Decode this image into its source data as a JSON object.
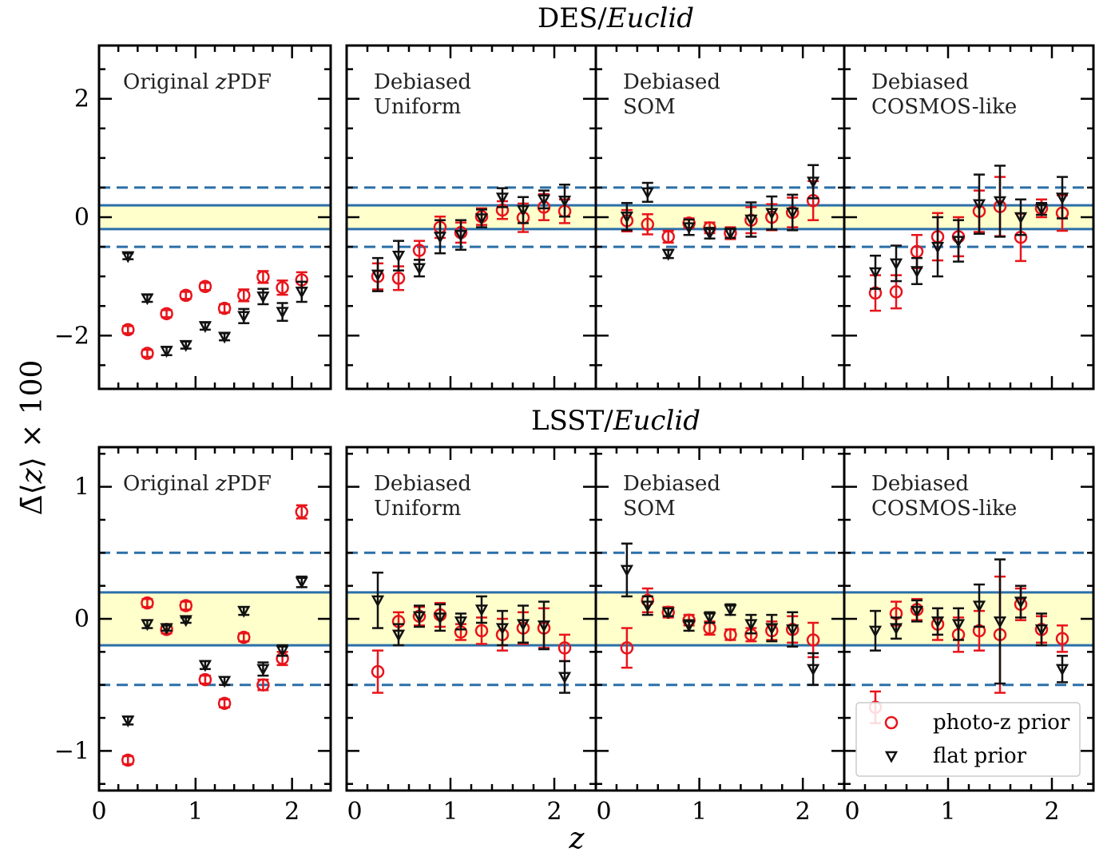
{
  "figure": {
    "ylabel": "Δ̄⟨z⟩ × 100",
    "xlabel": "z"
  },
  "legend": [
    {
      "label": "photo-z prior",
      "marker": "circle",
      "color": "#e8141b"
    },
    {
      "label": "flat prior",
      "marker": "triangle",
      "color": "#111111"
    }
  ],
  "colors": {
    "photoz": "#e8141b",
    "flat": "#111111",
    "band_fill": "#ffffcc",
    "ref_line": "#2b6fa8"
  },
  "chart_data": [
    {
      "type": "scatter",
      "row": "DES/Euclid",
      "panels": [
        {
          "label_lines": [
            "Original zPDF"
          ],
          "xlim": [
            0,
            2.4
          ],
          "ylim": [
            -2.9,
            2.9
          ],
          "xticks": [
            "0",
            "1",
            "2"
          ],
          "yticks": [
            -2,
            0,
            2
          ],
          "x": [
            0.3,
            0.5,
            0.7,
            0.9,
            1.1,
            1.3,
            1.5,
            1.7,
            1.9,
            2.1
          ],
          "series": [
            {
              "name": "photo-z prior",
              "x": [
                0.3,
                0.5,
                0.7,
                0.9,
                1.1,
                1.3,
                1.5,
                1.7,
                1.9,
                2.1
              ],
              "y": [
                -1.9,
                -2.3,
                -1.63,
                -1.32,
                -1.17,
                -1.54,
                -1.32,
                -1.01,
                -1.19,
                -1.06
              ],
              "err": [
                0.06,
                0.06,
                0.06,
                0.06,
                0.06,
                0.07,
                0.1,
                0.1,
                0.12,
                0.13
              ]
            },
            {
              "name": "flat prior",
              "x": [
                0.3,
                0.5,
                0.7,
                0.9,
                1.1,
                1.3,
                1.5,
                1.7,
                1.9,
                2.1
              ],
              "y": [
                -0.66,
                -1.37,
                -2.26,
                -2.16,
                -1.84,
                -2.02,
                -1.67,
                -1.34,
                -1.6,
                -1.26
              ],
              "err": [
                0.05,
                0.06,
                0.07,
                0.06,
                0.06,
                0.06,
                0.12,
                0.13,
                0.15,
                0.17
              ]
            }
          ]
        },
        {
          "label_lines": [
            "Debiased",
            "Uniform"
          ],
          "xlim": [
            0,
            2.4
          ],
          "ylim": [
            -2.9,
            2.9
          ],
          "xticks": [
            "0",
            "1",
            "2"
          ],
          "yticks": [
            -2,
            0,
            2
          ],
          "series": [
            {
              "name": "photo-z prior",
              "x": [
                0.3,
                0.5,
                0.7,
                0.9,
                1.1,
                1.3,
                1.5,
                1.7,
                1.9,
                2.1
              ],
              "y": [
                -1.0,
                -1.03,
                -0.56,
                -0.17,
                -0.26,
                0.01,
                0.12,
                -0.01,
                0.17,
                0.1
              ],
              "err": [
                0.22,
                0.2,
                0.16,
                0.18,
                0.17,
                0.14,
                0.15,
                0.24,
                0.22,
                0.2
              ]
            },
            {
              "name": "flat prior",
              "x": [
                0.3,
                0.5,
                0.7,
                0.9,
                1.1,
                1.3,
                1.5,
                1.7,
                1.9,
                2.1
              ],
              "y": [
                -0.97,
                -0.65,
                -0.86,
                -0.33,
                -0.3,
                -0.02,
                0.33,
                0.12,
                0.3,
                0.28
              ],
              "err": [
                0.28,
                0.25,
                0.14,
                0.28,
                0.25,
                0.15,
                0.16,
                0.22,
                0.15,
                0.27
              ]
            }
          ]
        },
        {
          "label_lines": [
            "Debiased",
            "SOM"
          ],
          "xlim": [
            0,
            2.4
          ],
          "ylim": [
            -2.9,
            2.9
          ],
          "xticks": [
            "0",
            "1",
            "2"
          ],
          "yticks": [
            -2,
            0,
            2
          ],
          "series": [
            {
              "name": "photo-z prior",
              "x": [
                0.3,
                0.5,
                0.7,
                0.9,
                1.1,
                1.3,
                1.5,
                1.7,
                1.9,
                2.1
              ],
              "y": [
                -0.06,
                -0.12,
                -0.33,
                -0.1,
                -0.18,
                -0.27,
                -0.05,
                0.0,
                0.08,
                0.28
              ],
              "err": [
                0.18,
                0.17,
                0.1,
                0.08,
                0.09,
                0.1,
                0.22,
                0.22,
                0.25,
                0.33
              ]
            },
            {
              "name": "flat prior",
              "x": [
                0.3,
                0.5,
                0.7,
                0.9,
                1.1,
                1.3,
                1.5,
                1.7,
                1.9,
                2.1
              ],
              "y": [
                0.01,
                0.42,
                -0.62,
                -0.17,
                -0.27,
                -0.27,
                -0.04,
                0.07,
                0.08,
                0.6
              ],
              "err": [
                0.23,
                0.16,
                0.07,
                0.13,
                0.09,
                0.08,
                0.29,
                0.28,
                0.3,
                0.28
              ]
            }
          ]
        },
        {
          "label_lines": [
            "Debiased",
            "COSMOS-like"
          ],
          "xlim": [
            0,
            2.4
          ],
          "ylim": [
            -2.9,
            2.9
          ],
          "xticks": [
            "0",
            "1",
            "2"
          ],
          "yticks": [
            -2,
            0,
            2
          ],
          "series": [
            {
              "name": "photo-z prior",
              "x": [
                0.3,
                0.5,
                0.7,
                0.9,
                1.1,
                1.3,
                1.5,
                1.7,
                1.9,
                2.1
              ],
              "y": [
                -1.28,
                -1.26,
                -0.58,
                -0.33,
                -0.33,
                0.1,
                0.18,
                -0.34,
                0.15,
                0.07
              ],
              "err": [
                0.3,
                0.28,
                0.28,
                0.4,
                0.33,
                0.35,
                0.5,
                0.4,
                0.15,
                0.3
              ]
            },
            {
              "name": "flat prior",
              "x": [
                0.3,
                0.5,
                0.7,
                0.9,
                1.1,
                1.3,
                1.5,
                1.7,
                1.9,
                2.1
              ],
              "y": [
                -0.93,
                -0.78,
                -0.91,
                -0.5,
                -0.4,
                0.22,
                0.27,
                0.0,
                0.14,
                0.33
              ],
              "err": [
                0.28,
                0.3,
                0.22,
                0.5,
                0.35,
                0.5,
                0.6,
                0.3,
                0.1,
                0.35
              ]
            }
          ]
        }
      ],
      "reference_lines": {
        "band": [
          -0.2,
          0.2
        ],
        "dashed": [
          -0.5,
          0.5
        ]
      }
    },
    {
      "type": "scatter",
      "row": "LSST/Euclid",
      "panels": [
        {
          "label_lines": [
            "Original zPDF"
          ],
          "xlim": [
            0,
            2.4
          ],
          "ylim": [
            -1.3,
            1.3
          ],
          "xticks": [
            "0",
            "1",
            "2"
          ],
          "yticks": [
            -1,
            0,
            1
          ],
          "series": [
            {
              "name": "photo-z prior",
              "x": [
                0.3,
                0.5,
                0.7,
                0.9,
                1.1,
                1.3,
                1.5,
                1.7,
                1.9,
                2.1
              ],
              "y": [
                -1.07,
                0.12,
                -0.08,
                0.1,
                -0.46,
                -0.64,
                -0.14,
                -0.5,
                -0.3,
                0.81
              ],
              "err": [
                0.03,
                0.03,
                0.03,
                0.03,
                0.03,
                0.03,
                0.03,
                0.04,
                0.05,
                0.05
              ]
            },
            {
              "name": "flat prior",
              "x": [
                0.3,
                0.5,
                0.7,
                0.9,
                1.1,
                1.3,
                1.5,
                1.7,
                1.9,
                2.1
              ],
              "y": [
                -0.77,
                -0.04,
                -0.07,
                -0.01,
                -0.35,
                -0.47,
                0.06,
                -0.38,
                -0.24,
                0.28
              ],
              "err": [
                0.03,
                0.03,
                0.02,
                0.02,
                0.03,
                0.03,
                0.03,
                0.05,
                0.04,
                0.04
              ]
            }
          ]
        },
        {
          "label_lines": [
            "Debiased",
            "Uniform"
          ],
          "xlim": [
            0,
            2.4
          ],
          "ylim": [
            -1.3,
            1.3
          ],
          "xticks": [
            "0",
            "1",
            "2"
          ],
          "yticks": [
            -1,
            0,
            1
          ],
          "series": [
            {
              "name": "photo-z prior",
              "x": [
                0.3,
                0.5,
                0.7,
                0.9,
                1.1,
                1.3,
                1.5,
                1.7,
                1.9,
                2.1
              ],
              "y": [
                -0.4,
                -0.02,
                0.02,
                0.03,
                -0.1,
                -0.09,
                -0.12,
                -0.07,
                -0.07,
                -0.22
              ],
              "err": [
                0.16,
                0.07,
                0.07,
                0.09,
                0.06,
                0.1,
                0.12,
                0.12,
                0.15,
                0.1
              ]
            },
            {
              "name": "flat prior",
              "x": [
                0.3,
                0.5,
                0.7,
                0.9,
                1.1,
                1.3,
                1.5,
                1.7,
                1.9,
                2.1
              ],
              "y": [
                0.14,
                -0.12,
                0.02,
                0.01,
                -0.02,
                0.07,
                -0.07,
                -0.04,
                -0.05,
                -0.44
              ],
              "err": [
                0.21,
                0.08,
                0.08,
                0.1,
                0.06,
                0.1,
                0.13,
                0.14,
                0.18,
                0.12
              ]
            }
          ]
        },
        {
          "label_lines": [
            "Debiased",
            "SOM"
          ],
          "xlim": [
            0,
            2.4
          ],
          "ylim": [
            -1.3,
            1.3
          ],
          "xticks": [
            "0",
            "1",
            "2"
          ],
          "yticks": [
            -1,
            0,
            1
          ],
          "series": [
            {
              "name": "photo-z prior",
              "x": [
                0.3,
                0.5,
                0.7,
                0.9,
                1.1,
                1.3,
                1.5,
                1.7,
                1.9,
                2.1
              ],
              "y": [
                -0.22,
                0.14,
                0.05,
                -0.01,
                -0.07,
                -0.12,
                -0.12,
                -0.09,
                -0.08,
                -0.16
              ],
              "err": [
                0.15,
                0.09,
                0.04,
                0.04,
                0.05,
                0.04,
                0.05,
                0.07,
                0.1,
                0.13
              ]
            },
            {
              "name": "flat prior",
              "x": [
                0.3,
                0.5,
                0.7,
                0.9,
                1.1,
                1.3,
                1.5,
                1.7,
                1.9,
                2.1
              ],
              "y": [
                0.37,
                0.1,
                0.05,
                -0.05,
                0.01,
                0.07,
                -0.04,
                -0.07,
                -0.08,
                -0.38
              ],
              "err": [
                0.2,
                0.07,
                0.03,
                0.04,
                0.04,
                0.04,
                0.07,
                0.1,
                0.13,
                0.12
              ]
            }
          ]
        },
        {
          "label_lines": [
            "Debiased",
            "COSMOS-like"
          ],
          "xlim": [
            0,
            2.4
          ],
          "ylim": [
            -1.3,
            1.3
          ],
          "xticks": [
            "0",
            "1",
            "2"
          ],
          "yticks": [
            -1,
            0,
            1
          ],
          "series": [
            {
              "name": "photo-z prior",
              "x": [
                0.3,
                0.5,
                0.7,
                0.9,
                1.1,
                1.3,
                1.5,
                1.7,
                1.9,
                2.1
              ],
              "y": [
                -0.67,
                0.04,
                0.07,
                -0.04,
                -0.12,
                -0.09,
                -0.12,
                0.11,
                -0.08,
                -0.15
              ],
              "err": [
                0.12,
                0.09,
                0.08,
                0.12,
                0.13,
                0.15,
                0.44,
                0.12,
                0.1,
                0.1
              ]
            },
            {
              "name": "flat prior",
              "x": [
                0.3,
                0.5,
                0.7,
                0.9,
                1.1,
                1.3,
                1.5,
                1.7,
                1.9,
                2.1
              ],
              "y": [
                -0.09,
                -0.07,
                0.06,
                -0.02,
                -0.04,
                0.1,
                -0.02,
                0.13,
                -0.08,
                -0.38
              ],
              "err": [
                0.15,
                0.08,
                0.08,
                0.1,
                0.12,
                0.16,
                0.47,
                0.12,
                0.12,
                0.1
              ]
            }
          ]
        }
      ],
      "reference_lines": {
        "band": [
          -0.2,
          0.2
        ],
        "dashed": [
          -0.5,
          0.5
        ]
      }
    }
  ]
}
